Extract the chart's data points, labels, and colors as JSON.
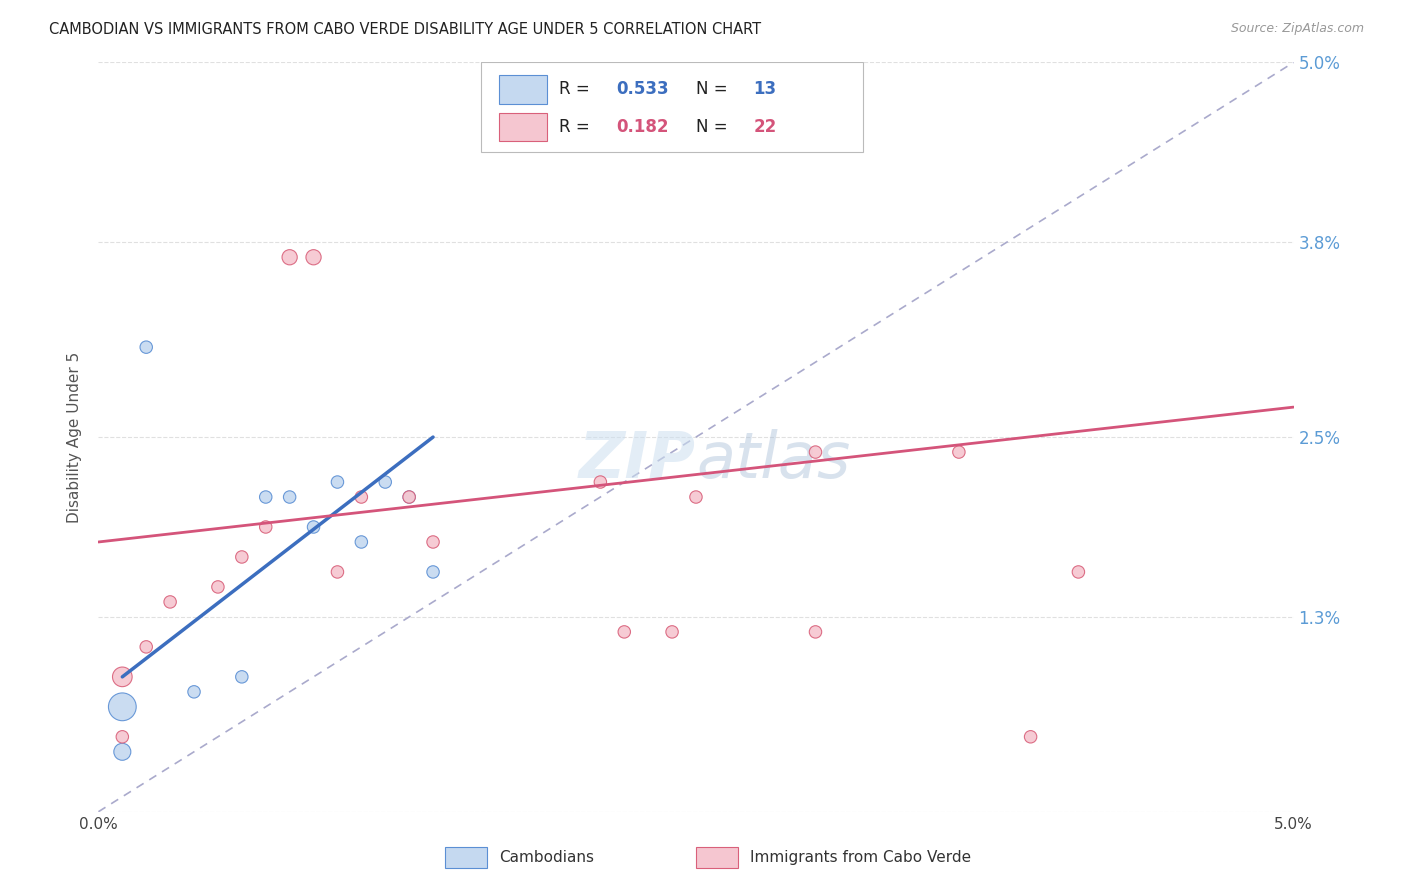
{
  "title": "CAMBODIAN VS IMMIGRANTS FROM CABO VERDE DISABILITY AGE UNDER 5 CORRELATION CHART",
  "source": "Source: ZipAtlas.com",
  "ylabel": "Disability Age Under 5",
  "xlim": [
    0.0,
    0.05
  ],
  "ylim": [
    0.0,
    0.05
  ],
  "background_color": "#ffffff",
  "grid_color": "#e0e0e0",
  "blue_fill": "#c5d9f0",
  "blue_edge": "#5b8fd4",
  "pink_fill": "#f5c6d0",
  "pink_edge": "#d9607a",
  "blue_line_color": "#3c6ebf",
  "pink_line_color": "#d4547a",
  "dashed_line_color": "#aaaacc",
  "legend_R1": "0.533",
  "legend_N1": "13",
  "legend_R2": "0.182",
  "legend_N2": "22",
  "cambodian_x": [
    0.001,
    0.001,
    0.004,
    0.006,
    0.007,
    0.008,
    0.009,
    0.01,
    0.011,
    0.012,
    0.013,
    0.014,
    0.002
  ],
  "cambodian_y": [
    0.007,
    0.004,
    0.008,
    0.009,
    0.021,
    0.021,
    0.019,
    0.022,
    0.018,
    0.022,
    0.021,
    0.016,
    0.031
  ],
  "cambodian_size": [
    400,
    150,
    80,
    80,
    80,
    80,
    80,
    80,
    80,
    80,
    80,
    80,
    80
  ],
  "cabo_verde_x": [
    0.001,
    0.001,
    0.002,
    0.003,
    0.005,
    0.006,
    0.007,
    0.008,
    0.009,
    0.01,
    0.011,
    0.013,
    0.014,
    0.021,
    0.022,
    0.024,
    0.025,
    0.03,
    0.03,
    0.036,
    0.039,
    0.041
  ],
  "cabo_verde_y": [
    0.005,
    0.009,
    0.011,
    0.014,
    0.015,
    0.017,
    0.019,
    0.037,
    0.037,
    0.016,
    0.021,
    0.021,
    0.018,
    0.022,
    0.012,
    0.012,
    0.021,
    0.024,
    0.012,
    0.024,
    0.005,
    0.016
  ],
  "cabo_verde_size": [
    80,
    200,
    80,
    80,
    80,
    80,
    80,
    120,
    120,
    80,
    80,
    80,
    80,
    80,
    80,
    80,
    80,
    80,
    80,
    80,
    80,
    80
  ],
  "blue_line_x": [
    0.001,
    0.014
  ],
  "blue_line_y": [
    0.009,
    0.025
  ],
  "pink_line_x": [
    0.0,
    0.05
  ],
  "pink_line_y": [
    0.018,
    0.027
  ],
  "dashed_line_x": [
    0.0,
    0.05
  ],
  "dashed_line_y": [
    0.0,
    0.05
  ],
  "right_yticks": [
    0.0,
    0.013,
    0.025,
    0.038,
    0.05
  ],
  "right_ylabels": [
    "",
    "1.3%",
    "2.5%",
    "3.8%",
    "5.0%"
  ],
  "xtick_pos": [
    0.0,
    0.01,
    0.02,
    0.03,
    0.04,
    0.05
  ],
  "xtick_labels": [
    "0.0%",
    "",
    "",
    "",
    "",
    "5.0%"
  ]
}
